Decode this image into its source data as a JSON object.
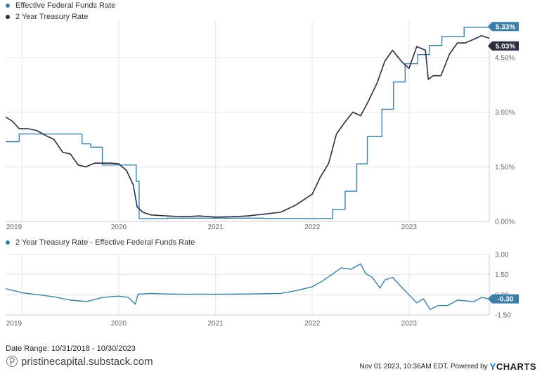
{
  "legend": {
    "fed_funds": "Effective Federal Funds Rate",
    "treasury_2y": "2 Year Treasury Rate",
    "spread": "2 Year Treasury Rate - Effective Federal Funds Rate"
  },
  "footer": {
    "date_range": "Date Range: 10/31/2018 - 10/30/2023",
    "timestamp": "Nov 01 2023, 10:36AM EDT. Powered by",
    "brand_y": "Y",
    "brand_rest": "CHARTS",
    "watermark": "pristinecapital.substack.com"
  },
  "colors": {
    "fed_funds": "#3b7fa8",
    "treasury_2y": "#2b2d42",
    "spread": "#3b7fa8",
    "grid": "#e6e6e6"
  },
  "chart_data": [
    {
      "type": "line",
      "x_axis": {
        "start": 2018.83,
        "end": 2023.83,
        "tick_labels": [
          "2019",
          "2020",
          "2021",
          "2022",
          "2023"
        ],
        "ticks": [
          2019,
          2020,
          2021,
          2022,
          2023
        ]
      },
      "y_axis": {
        "ylim": [
          0,
          5.5
        ],
        "tick_values": [
          0,
          1.5,
          3,
          4.5
        ],
        "tick_labels": [
          "0.00%",
          "1.50%",
          "3.00%",
          "4.50%"
        ],
        "position": "right"
      },
      "grid": true,
      "legend_position": "top-left",
      "series": [
        {
          "name": "Effective Federal Funds Rate",
          "step": true,
          "end_label": "5.33%",
          "points": [
            [
              2018.83,
              2.19
            ],
            [
              2018.97,
              2.4
            ],
            [
              2019.58,
              2.4
            ],
            [
              2019.62,
              2.13
            ],
            [
              2019.71,
              2.04
            ],
            [
              2019.83,
              1.55
            ],
            [
              2020.17,
              1.55
            ],
            [
              2020.18,
              1.1
            ],
            [
              2020.21,
              0.08
            ],
            [
              2020.5,
              0.09
            ],
            [
              2021.0,
              0.09
            ],
            [
              2021.5,
              0.08
            ],
            [
              2022.0,
              0.08
            ],
            [
              2022.21,
              0.33
            ],
            [
              2022.34,
              0.83
            ],
            [
              2022.46,
              1.58
            ],
            [
              2022.57,
              2.33
            ],
            [
              2022.72,
              3.08
            ],
            [
              2022.84,
              3.83
            ],
            [
              2022.96,
              4.33
            ],
            [
              2023.09,
              4.58
            ],
            [
              2023.21,
              4.83
            ],
            [
              2023.34,
              5.08
            ],
            [
              2023.57,
              5.33
            ],
            [
              2023.83,
              5.33
            ]
          ]
        },
        {
          "name": "2 Year Treasury Rate",
          "step": false,
          "end_label": "5.03%",
          "points": [
            [
              2018.83,
              2.87
            ],
            [
              2018.9,
              2.75
            ],
            [
              2018.97,
              2.55
            ],
            [
              2019.05,
              2.55
            ],
            [
              2019.15,
              2.5
            ],
            [
              2019.25,
              2.35
            ],
            [
              2019.33,
              2.25
            ],
            [
              2019.42,
              1.9
            ],
            [
              2019.5,
              1.85
            ],
            [
              2019.58,
              1.55
            ],
            [
              2019.66,
              1.5
            ],
            [
              2019.75,
              1.6
            ],
            [
              2019.83,
              1.6
            ],
            [
              2019.92,
              1.6
            ],
            [
              2020.0,
              1.58
            ],
            [
              2020.08,
              1.4
            ],
            [
              2020.15,
              1.0
            ],
            [
              2020.19,
              0.4
            ],
            [
              2020.25,
              0.25
            ],
            [
              2020.33,
              0.18
            ],
            [
              2020.5,
              0.15
            ],
            [
              2020.67,
              0.13
            ],
            [
              2020.83,
              0.15
            ],
            [
              2021.0,
              0.12
            ],
            [
              2021.17,
              0.13
            ],
            [
              2021.33,
              0.15
            ],
            [
              2021.5,
              0.2
            ],
            [
              2021.67,
              0.25
            ],
            [
              2021.83,
              0.45
            ],
            [
              2022.0,
              0.75
            ],
            [
              2022.08,
              1.2
            ],
            [
              2022.17,
              1.6
            ],
            [
              2022.25,
              2.4
            ],
            [
              2022.33,
              2.7
            ],
            [
              2022.42,
              3.0
            ],
            [
              2022.5,
              2.9
            ],
            [
              2022.58,
              3.3
            ],
            [
              2022.67,
              3.8
            ],
            [
              2022.75,
              4.4
            ],
            [
              2022.83,
              4.7
            ],
            [
              2022.92,
              4.4
            ],
            [
              2023.0,
              4.2
            ],
            [
              2023.08,
              4.8
            ],
            [
              2023.17,
              4.7
            ],
            [
              2023.2,
              3.9
            ],
            [
              2023.25,
              4.0
            ],
            [
              2023.33,
              4.0
            ],
            [
              2023.42,
              4.6
            ],
            [
              2023.5,
              4.9
            ],
            [
              2023.58,
              4.9
            ],
            [
              2023.67,
              5.0
            ],
            [
              2023.75,
              5.1
            ],
            [
              2023.83,
              5.03
            ]
          ]
        }
      ]
    },
    {
      "type": "line",
      "x_axis": {
        "start": 2018.83,
        "end": 2023.83,
        "tick_labels": [
          "2019",
          "2020",
          "2021",
          "2022",
          "2023"
        ],
        "ticks": [
          2019,
          2020,
          2021,
          2022,
          2023
        ]
      },
      "y_axis": {
        "ylim": [
          -1.5,
          3.0
        ],
        "tick_values": [
          -1.5,
          0,
          1.5,
          3.0
        ],
        "tick_labels": [
          "-1.50",
          "0.00",
          "1.50",
          "3.00"
        ],
        "position": "right"
      },
      "grid": true,
      "series": [
        {
          "name": "2 Year Treasury Rate - Effective Federal Funds Rate",
          "end_label": "-0.30",
          "points": [
            [
              2018.83,
              0.45
            ],
            [
              2018.92,
              0.3
            ],
            [
              2019.0,
              0.15
            ],
            [
              2019.17,
              0.0
            ],
            [
              2019.33,
              -0.15
            ],
            [
              2019.5,
              -0.4
            ],
            [
              2019.67,
              -0.5
            ],
            [
              2019.83,
              -0.2
            ],
            [
              2020.0,
              -0.1
            ],
            [
              2020.1,
              -0.2
            ],
            [
              2020.17,
              -0.7
            ],
            [
              2020.2,
              0.05
            ],
            [
              2020.33,
              0.1
            ],
            [
              2020.5,
              0.06
            ],
            [
              2020.67,
              0.04
            ],
            [
              2020.83,
              0.05
            ],
            [
              2021.0,
              0.04
            ],
            [
              2021.33,
              0.06
            ],
            [
              2021.67,
              0.1
            ],
            [
              2021.83,
              0.3
            ],
            [
              2022.0,
              0.6
            ],
            [
              2022.1,
              1.0
            ],
            [
              2022.2,
              1.5
            ],
            [
              2022.3,
              2.0
            ],
            [
              2022.4,
              1.9
            ],
            [
              2022.5,
              2.3
            ],
            [
              2022.55,
              1.6
            ],
            [
              2022.62,
              1.3
            ],
            [
              2022.7,
              0.5
            ],
            [
              2022.75,
              1.1
            ],
            [
              2022.83,
              1.3
            ],
            [
              2022.92,
              0.6
            ],
            [
              2023.0,
              0.0
            ],
            [
              2023.08,
              -0.6
            ],
            [
              2023.15,
              -0.3
            ],
            [
              2023.22,
              -1.1
            ],
            [
              2023.3,
              -0.8
            ],
            [
              2023.4,
              -0.8
            ],
            [
              2023.5,
              -0.4
            ],
            [
              2023.67,
              -0.5
            ],
            [
              2023.75,
              -0.2
            ],
            [
              2023.83,
              -0.3
            ]
          ]
        }
      ]
    }
  ]
}
